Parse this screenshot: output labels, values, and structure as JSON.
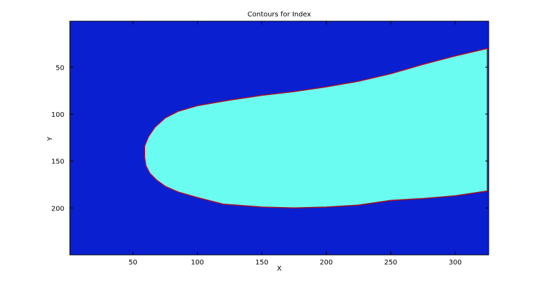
{
  "chart_data": {
    "type": "heatmap",
    "title": "Contours for Index",
    "xlabel": "X",
    "ylabel": "Y",
    "xlim": [
      1,
      326
    ],
    "ylim": [
      1,
      250
    ],
    "y_reversed": true,
    "x_ticks": [
      50,
      100,
      150,
      200,
      250,
      300
    ],
    "y_ticks": [
      50,
      100,
      150,
      200
    ],
    "grid": false,
    "legend": "none",
    "background_region": {
      "name": "outside",
      "color": "#0a1fd0"
    },
    "regions": [
      {
        "name": "inside",
        "color": "#6afcf0",
        "edge_color": "#a0102a",
        "boundary": [
          [
            325,
            30
          ],
          [
            300,
            38
          ],
          [
            275,
            47
          ],
          [
            250,
            57
          ],
          [
            225,
            65
          ],
          [
            200,
            71
          ],
          [
            175,
            76
          ],
          [
            150,
            80
          ],
          [
            125,
            85
          ],
          [
            100,
            91
          ],
          [
            85,
            97
          ],
          [
            75,
            104
          ],
          [
            67,
            114
          ],
          [
            62,
            124
          ],
          [
            59,
            134
          ],
          [
            59,
            146
          ],
          [
            60,
            155
          ],
          [
            63,
            163
          ],
          [
            68,
            170
          ],
          [
            75,
            177
          ],
          [
            85,
            183
          ],
          [
            100,
            189
          ],
          [
            120,
            196
          ],
          [
            150,
            199
          ],
          [
            175,
            200
          ],
          [
            200,
            199
          ],
          [
            225,
            197
          ],
          [
            250,
            192
          ],
          [
            275,
            190
          ],
          [
            300,
            187
          ],
          [
            325,
            182
          ]
        ]
      }
    ]
  }
}
